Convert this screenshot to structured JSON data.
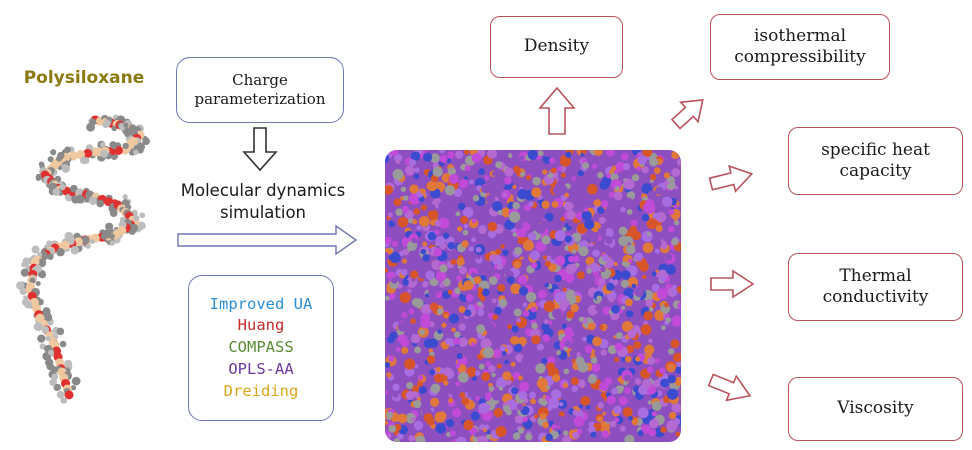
{
  "polymer": {
    "title": "Polysiloxane"
  },
  "workflow": {
    "charge_label": "Charge parameterization",
    "md_label_line1": "Molecular dynamics",
    "md_label_line2": "simulation"
  },
  "force_fields": [
    {
      "name": "Improved UA",
      "color": "#2a8fd6"
    },
    {
      "name": "Huang",
      "color": "#c62a2a"
    },
    {
      "name": "COMPASS",
      "color": "#5a8a34"
    },
    {
      "name": "OPLS-AA",
      "color": "#6b3aa0"
    },
    {
      "name": "Dreiding",
      "color": "#d8a81c"
    }
  ],
  "outputs": {
    "density": "Density",
    "isothermal": "isothermal compressibility",
    "heat_capacity": "specific heat capacity",
    "thermal_conductivity": "Thermal conductivity",
    "viscosity": "Viscosity"
  },
  "colors": {
    "box_border_blue": "#6f76b5",
    "box_border_red": "#b9535d",
    "arrow_red": "#b9535d",
    "arrow_gray": "#333333",
    "md_purple": "#8d4fc0",
    "md_orange": "#d8552a",
    "md_blue": "#3a4bd0",
    "md_magenta": "#c24ad8"
  }
}
